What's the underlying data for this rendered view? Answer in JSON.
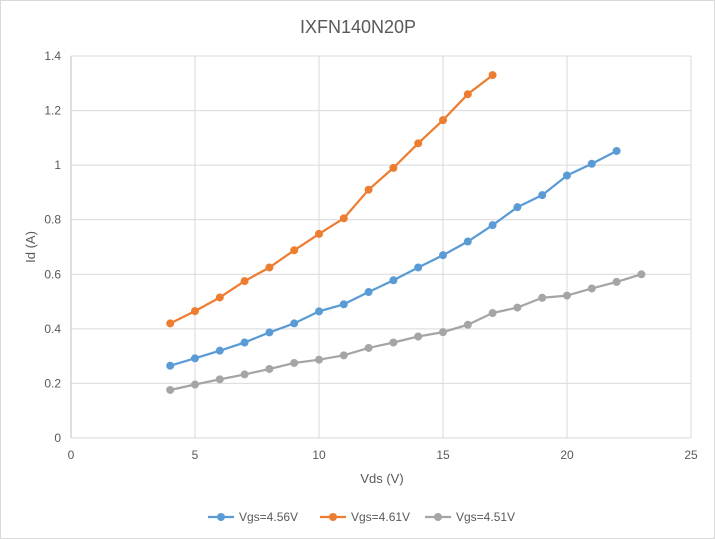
{
  "chart_data": {
    "type": "scatter",
    "title": "IXFN140N20P",
    "xlabel": "Vds (V)",
    "ylabel": "Id (A)",
    "xlim": [
      0,
      25
    ],
    "ylim": [
      0,
      1.4
    ],
    "xticks": [
      0,
      5,
      10,
      15,
      20,
      25
    ],
    "yticks": [
      0,
      0.2,
      0.4,
      0.6,
      0.8,
      1,
      1.2,
      1.4
    ],
    "xtick_labels": [
      "0",
      "5",
      "10",
      "15",
      "20",
      "25"
    ],
    "ytick_labels": [
      "0",
      "0.2",
      "0.4",
      "0.6",
      "0.8",
      "1",
      "1.2",
      "1.4"
    ],
    "grid": true,
    "legend_position": "bottom",
    "series": [
      {
        "name": "Vgs=4.56V",
        "color": "#5b9bd5",
        "x": [
          4,
          5,
          6,
          7,
          8,
          9,
          10,
          11,
          12,
          13,
          14,
          15,
          16,
          17,
          18,
          19,
          20,
          21,
          22
        ],
        "y": [
          0.265,
          0.292,
          0.32,
          0.35,
          0.387,
          0.42,
          0.464,
          0.49,
          0.535,
          0.578,
          0.625,
          0.67,
          0.72,
          0.78,
          0.846,
          0.89,
          0.962,
          1.005,
          1.052
        ]
      },
      {
        "name": "Vgs=4.61V",
        "color": "#ed7d31",
        "x": [
          4,
          5,
          6,
          7,
          8,
          9,
          10,
          11,
          12,
          13,
          14,
          15,
          16,
          17
        ],
        "y": [
          0.42,
          0.465,
          0.515,
          0.575,
          0.625,
          0.688,
          0.748,
          0.805,
          0.91,
          0.99,
          1.08,
          1.165,
          1.26,
          1.33
        ]
      },
      {
        "name": "Vgs=4.51V",
        "color": "#a5a5a5",
        "x": [
          4,
          5,
          6,
          7,
          8,
          9,
          10,
          11,
          12,
          13,
          14,
          15,
          16,
          17,
          18,
          19,
          20,
          21,
          22,
          23
        ],
        "y": [
          0.176,
          0.196,
          0.215,
          0.233,
          0.253,
          0.275,
          0.287,
          0.303,
          0.33,
          0.35,
          0.372,
          0.388,
          0.415,
          0.458,
          0.478,
          0.514,
          0.522,
          0.548,
          0.572,
          0.6
        ]
      }
    ]
  }
}
